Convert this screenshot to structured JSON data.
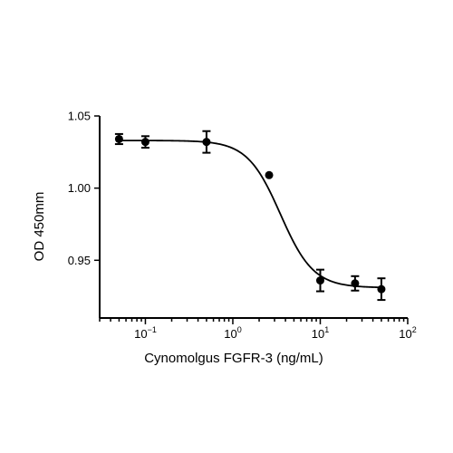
{
  "chart_data": {
    "type": "scatter",
    "xscale": "log",
    "xlim": [
      0.03,
      100
    ],
    "ylim": [
      0.91,
      1.05
    ],
    "xlabel": "Cynomolgus FGFR-3 (ng/mL)",
    "ylabel": "OD 450mm",
    "grid": false,
    "x_ticks": [
      {
        "value": 0.1,
        "base": "10",
        "exp": "−1"
      },
      {
        "value": 1,
        "base": "10",
        "exp": "0"
      },
      {
        "value": 10,
        "base": "10",
        "exp": "1"
      },
      {
        "value": 100,
        "base": "10",
        "exp": "2"
      }
    ],
    "y_ticks": [
      {
        "value": 0.95,
        "label": "0.95"
      },
      {
        "value": 1.0,
        "label": "1.00"
      },
      {
        "value": 1.05,
        "label": "1.05"
      }
    ],
    "series": [
      {
        "points": [
          {
            "x": 0.05,
            "y": 1.034,
            "err": 0.0035
          },
          {
            "x": 0.1,
            "y": 1.032,
            "err": 0.004
          },
          {
            "x": 0.5,
            "y": 1.032,
            "err": 0.0075
          },
          {
            "x": 2.6,
            "y": 1.009,
            "err": 0.0
          },
          {
            "x": 10,
            "y": 0.936,
            "err": 0.0075
          },
          {
            "x": 25,
            "y": 0.934,
            "err": 0.005
          },
          {
            "x": 50,
            "y": 0.93,
            "err": 0.0075
          }
        ],
        "fit": {
          "model": "4PL",
          "top": 1.033,
          "bottom": 0.931,
          "ec50": 3.5,
          "hill": 2.3
        }
      }
    ]
  }
}
